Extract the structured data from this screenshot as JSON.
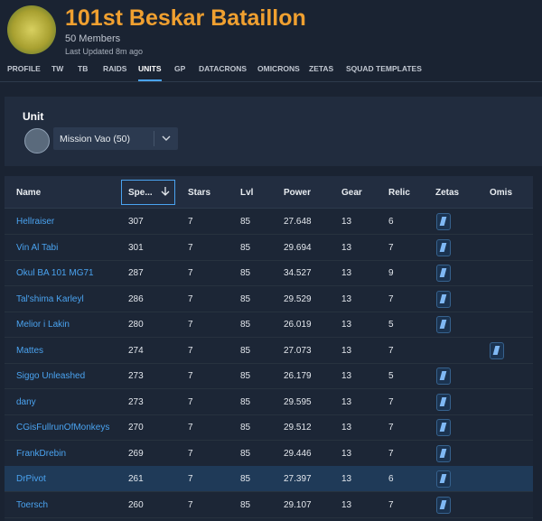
{
  "header": {
    "title": "101st Beskar Bataillon",
    "members": "50 Members",
    "updated": "Last Updated 8m ago"
  },
  "nav": [
    "PROFILE",
    "TW",
    "TB",
    "RAIDS",
    "UNITS",
    "GP",
    "DATACRONS",
    "OMICRONS",
    "ZETAS",
    "SQUAD TEMPLATES"
  ],
  "active_tab": 4,
  "unit_panel": {
    "label": "Unit",
    "selected": "Mission Vao (50)"
  },
  "table": {
    "columns": [
      "Name",
      "Spe...",
      "Stars",
      "Lvl",
      "Power",
      "Gear",
      "Relic",
      "Zetas",
      "Omis"
    ],
    "sort_column": 1,
    "highlighted_row": 10,
    "rows": [
      {
        "cells": [
          "Hellraiser",
          "307",
          "7",
          "85",
          "27.648",
          "13",
          "6"
        ],
        "zeta": true,
        "omicron": false
      },
      {
        "cells": [
          "Vin Al Tabi",
          "301",
          "7",
          "85",
          "29.694",
          "13",
          "7"
        ],
        "zeta": true,
        "omicron": false
      },
      {
        "cells": [
          "Okul BA 101 MG71",
          "287",
          "7",
          "85",
          "34.527",
          "13",
          "9"
        ],
        "zeta": true,
        "omicron": false
      },
      {
        "cells": [
          "Tal'shima Karleyl",
          "286",
          "7",
          "85",
          "29.529",
          "13",
          "7"
        ],
        "zeta": true,
        "omicron": false
      },
      {
        "cells": [
          "Melior i Lakin",
          "280",
          "7",
          "85",
          "26.019",
          "13",
          "5"
        ],
        "zeta": true,
        "omicron": false
      },
      {
        "cells": [
          "Mattes",
          "274",
          "7",
          "85",
          "27.073",
          "13",
          "7"
        ],
        "zeta": false,
        "omicron": true
      },
      {
        "cells": [
          "Siggo Unleashed",
          "273",
          "7",
          "85",
          "26.179",
          "13",
          "5"
        ],
        "zeta": true,
        "omicron": false
      },
      {
        "cells": [
          "dany",
          "273",
          "7",
          "85",
          "29.595",
          "13",
          "7"
        ],
        "zeta": true,
        "omicron": false
      },
      {
        "cells": [
          "CGisFullrunOfMonkeys",
          "270",
          "7",
          "85",
          "29.512",
          "13",
          "7"
        ],
        "zeta": true,
        "omicron": false
      },
      {
        "cells": [
          "FrankDrebin",
          "269",
          "7",
          "85",
          "29.446",
          "13",
          "7"
        ],
        "zeta": true,
        "omicron": false
      },
      {
        "cells": [
          "DrPivot",
          "261",
          "7",
          "85",
          "27.397",
          "13",
          "6"
        ],
        "zeta": true,
        "omicron": false
      },
      {
        "cells": [
          "Toersch",
          "260",
          "7",
          "85",
          "29.107",
          "13",
          "7"
        ],
        "zeta": true,
        "omicron": false
      }
    ]
  }
}
